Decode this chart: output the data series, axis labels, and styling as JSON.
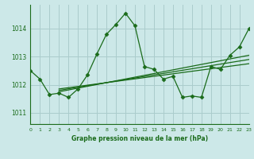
{
  "title": "Graphe pression niveau de la mer (hPa)",
  "background_color": "#cce8e8",
  "grid_color": "#aacccc",
  "line_color": "#1a6b1a",
  "text_color": "#1a6b1a",
  "ylabel_ticks": [
    1011,
    1012,
    1013,
    1014
  ],
  "xlabel_ticks": [
    0,
    1,
    2,
    3,
    4,
    5,
    6,
    7,
    8,
    9,
    10,
    11,
    12,
    13,
    14,
    15,
    16,
    17,
    18,
    19,
    20,
    21,
    22,
    23
  ],
  "ylim": [
    1010.6,
    1014.85
  ],
  "xlim": [
    0,
    23
  ],
  "series1_x": [
    0,
    1,
    2,
    3,
    4,
    5,
    6,
    7,
    8,
    9,
    10,
    11,
    12,
    13,
    14,
    15,
    16,
    17,
    18,
    19,
    20,
    21,
    22,
    23
  ],
  "series1_y": [
    1012.5,
    1012.2,
    1011.65,
    1011.7,
    1011.55,
    1011.85,
    1012.35,
    1013.1,
    1013.8,
    1014.15,
    1014.55,
    1014.1,
    1012.65,
    1012.55,
    1012.2,
    1012.3,
    1011.55,
    1011.6,
    1011.55,
    1012.65,
    1012.55,
    1013.05,
    1013.35,
    1014.0
  ],
  "series2_x": [
    3,
    23
  ],
  "series2_y": [
    1011.75,
    1013.05
  ],
  "series3_x": [
    3,
    23
  ],
  "series3_y": [
    1011.8,
    1012.9
  ],
  "series4_x": [
    3,
    23
  ],
  "series4_y": [
    1011.85,
    1012.75
  ]
}
